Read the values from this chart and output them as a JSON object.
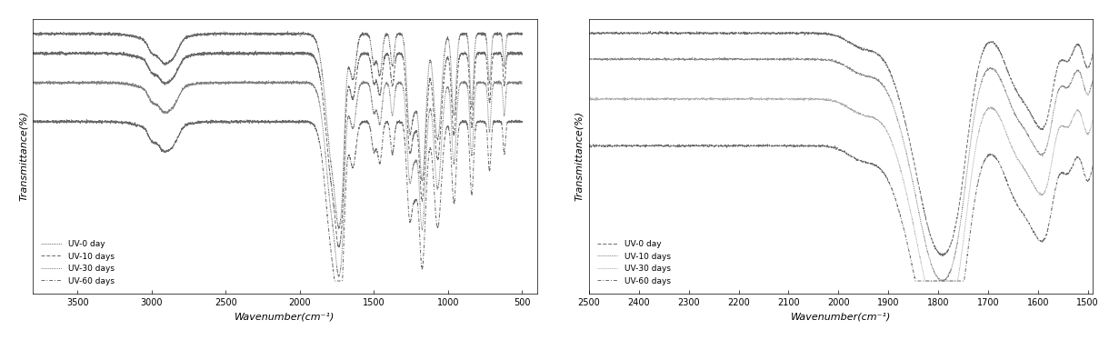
{
  "chart1": {
    "xlabel": "Wavenumber(cm⁻¹)",
    "ylabel": "Transmittance(%)",
    "xlim": [
      3800,
      400
    ],
    "xticks": [
      3500,
      3000,
      2500,
      2000,
      1500,
      1000,
      500
    ],
    "legend_labels": [
      "UV-0 day",
      "UV-10 days",
      "UV-30 days",
      "UV-60 days"
    ]
  },
  "chart2": {
    "xlabel": "Wavenumber(cm⁻¹)",
    "ylabel": "Transmittance(%)",
    "xlim": [
      2500,
      1490
    ],
    "xticks": [
      2500,
      2400,
      2300,
      2200,
      2100,
      2000,
      1900,
      1800,
      1700,
      1600,
      1500
    ],
    "legend_labels": [
      "UV-0 day",
      "UV-10 days",
      "UV-30 days",
      "UV-60 days"
    ]
  }
}
